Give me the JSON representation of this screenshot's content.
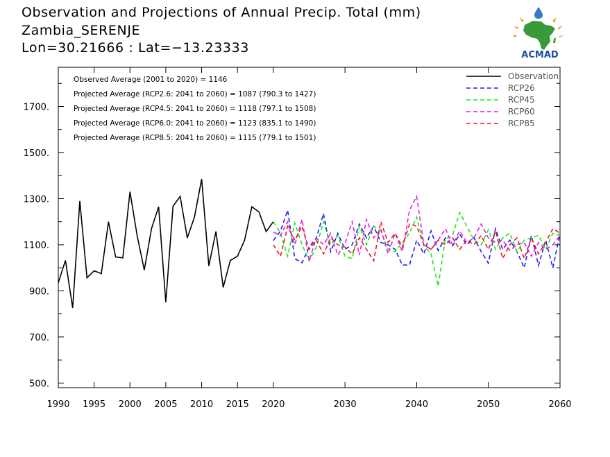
{
  "header": {
    "title": "Observation and Projections of Annual Precip. Total (mm)",
    "station": "Zambia_SERENJE",
    "coords": "Lon=30.21666 : Lat=−13.23333"
  },
  "logo": {
    "text": "ACMAD",
    "icon": "acmad-africa-logo"
  },
  "colors": {
    "Observation": "#000000",
    "RCP26": "#1a1aff",
    "RCP45": "#1ae61a",
    "RCP60": "#e61ae6",
    "RCP85": "#e61a1a"
  },
  "stats": [
    "Observed Average (2001 to 2020) = 1146",
    "Projected Average (RCP2.6: 2041 to 2060) = 1087 (790.3 to 1427)",
    "Projected Average (RCP4.5: 2041 to 2060) = 1118 (797.1 to 1508)",
    "Projected Average (RCP6.0: 2041 to 2060) = 1123 (835.1 to 1490)",
    "Projected Average (RCP8.5: 2041 to 2060) = 1115 (779.1 to 1501)"
  ],
  "chart_data": {
    "type": "line",
    "legend_position": "top-right",
    "grid": false,
    "xlim": [
      1990,
      2060
    ],
    "ylim": [
      480,
      1870
    ],
    "x_ticks": [
      1990,
      1995,
      2000,
      2005,
      2010,
      2015,
      2020,
      2030,
      2040,
      2050,
      2060
    ],
    "x_tick_labels": [
      "1990",
      "1995",
      "2000",
      "2005",
      "2010",
      "2015",
      "2020",
      "2030",
      "2040",
      "2050",
      "2060"
    ],
    "y_ticks": [
      500,
      700,
      900,
      1100,
      1300,
      1500,
      1700
    ],
    "y_tick_labels": [
      "500.",
      "700.",
      "900.",
      "1100.",
      "1300.",
      "1500.",
      "1700."
    ],
    "series": [
      {
        "name": "Observation",
        "style": "solid",
        "x": [
          1990,
          1991,
          1992,
          1993,
          1994,
          1995,
          1996,
          1997,
          1998,
          1999,
          2000,
          2001,
          2002,
          2003,
          2004,
          2005,
          2006,
          2007,
          2008,
          2009,
          2010,
          2011,
          2012,
          2013,
          2014,
          2015,
          2016,
          2017,
          2018,
          2019,
          2020
        ],
        "values": [
          935,
          1032,
          826,
          1290,
          957,
          987,
          975,
          1200,
          1047,
          1043,
          1330,
          1140,
          990,
          1170,
          1265,
          850,
          1267,
          1310,
          1130,
          1220,
          1385,
          1008,
          1158,
          915,
          1032,
          1050,
          1120,
          1265,
          1242,
          1157,
          1200
        ]
      },
      {
        "name": "RCP26",
        "style": "dashed",
        "x": [
          2020,
          2021,
          2022,
          2023,
          2024,
          2025,
          2026,
          2027,
          2028,
          2029,
          2030,
          2031,
          2032,
          2033,
          2034,
          2035,
          2036,
          2037,
          2038,
          2039,
          2040,
          2041,
          2042,
          2043,
          2044,
          2045,
          2046,
          2047,
          2048,
          2049,
          2050,
          2051,
          2052,
          2053,
          2054,
          2055,
          2056,
          2057,
          2058,
          2059,
          2060
        ],
        "values": [
          1118,
          1160,
          1250,
          1040,
          1022,
          1090,
          1130,
          1235,
          1070,
          1150,
          1080,
          1100,
          1190,
          1130,
          1180,
          1110,
          1100,
          1080,
          1012,
          1012,
          1120,
          1060,
          1160,
          1075,
          1130,
          1095,
          1145,
          1100,
          1130,
          1070,
          1020,
          1170,
          1080,
          1120,
          1070,
          1000,
          1140,
          1010,
          1120,
          1000,
          1150
        ]
      },
      {
        "name": "RCP45",
        "style": "dashed",
        "x": [
          2020,
          2021,
          2022,
          2023,
          2024,
          2025,
          2026,
          2027,
          2028,
          2029,
          2030,
          2031,
          2032,
          2033,
          2034,
          2035,
          2036,
          2037,
          2038,
          2039,
          2040,
          2041,
          2042,
          2043,
          2044,
          2045,
          2046,
          2047,
          2048,
          2049,
          2050,
          2051,
          2052,
          2053,
          2054,
          2055,
          2056,
          2057,
          2058,
          2059,
          2060
        ],
        "values": [
          1200,
          1150,
          1050,
          1195,
          1100,
          1030,
          1090,
          1200,
          1100,
          1140,
          1050,
          1040,
          1180,
          1100,
          1180,
          1160,
          1080,
          1070,
          1110,
          1150,
          1220,
          1095,
          1060,
          920,
          1125,
          1140,
          1240,
          1180,
          1120,
          1100,
          1165,
          1080,
          1130,
          1150,
          1070,
          1120,
          1130,
          1140,
          1080,
          1150,
          1140
        ]
      },
      {
        "name": "RCP60",
        "style": "dashed",
        "x": [
          2020,
          2021,
          2022,
          2023,
          2024,
          2025,
          2026,
          2027,
          2028,
          2029,
          2030,
          2031,
          2032,
          2033,
          2034,
          2035,
          2036,
          2037,
          2038,
          2039,
          2040,
          2041,
          2042,
          2043,
          2044,
          2045,
          2046,
          2047,
          2048,
          2049,
          2050,
          2051,
          2052,
          2053,
          2054,
          2055,
          2056,
          2057,
          2058,
          2059,
          2060
        ],
        "values": [
          1155,
          1140,
          1200,
          1100,
          1210,
          1030,
          1130,
          1100,
          1150,
          1055,
          1105,
          1200,
          1055,
          1210,
          1130,
          1170,
          1060,
          1150,
          1070,
          1250,
          1310,
          1100,
          1080,
          1120,
          1170,
          1100,
          1160,
          1110,
          1130,
          1190,
          1130,
          1110,
          1120,
          1075,
          1100,
          1110,
          1050,
          1110,
          1080,
          1100,
          1140
        ]
      },
      {
        "name": "RCP85",
        "style": "dashed",
        "x": [
          2020,
          2021,
          2022,
          2023,
          2024,
          2025,
          2026,
          2027,
          2028,
          2029,
          2030,
          2031,
          2032,
          2033,
          2034,
          2035,
          2036,
          2037,
          2038,
          2039,
          2040,
          2041,
          2042,
          2043,
          2044,
          2045,
          2046,
          2047,
          2048,
          2049,
          2050,
          2051,
          2052,
          2053,
          2054,
          2055,
          2056,
          2057,
          2058,
          2059,
          2060
        ],
        "values": [
          1100,
          1050,
          1180,
          1120,
          1180,
          1080,
          1120,
          1060,
          1130,
          1100,
          1090,
          1060,
          1130,
          1080,
          1030,
          1200,
          1110,
          1150,
          1090,
          1190,
          1180,
          1100,
          1080,
          1120,
          1100,
          1130,
          1080,
          1120,
          1100,
          1140,
          1080,
          1160,
          1040,
          1100,
          1130,
          1040,
          1130,
          1060,
          1110,
          1170,
          1150
        ]
      }
    ]
  }
}
